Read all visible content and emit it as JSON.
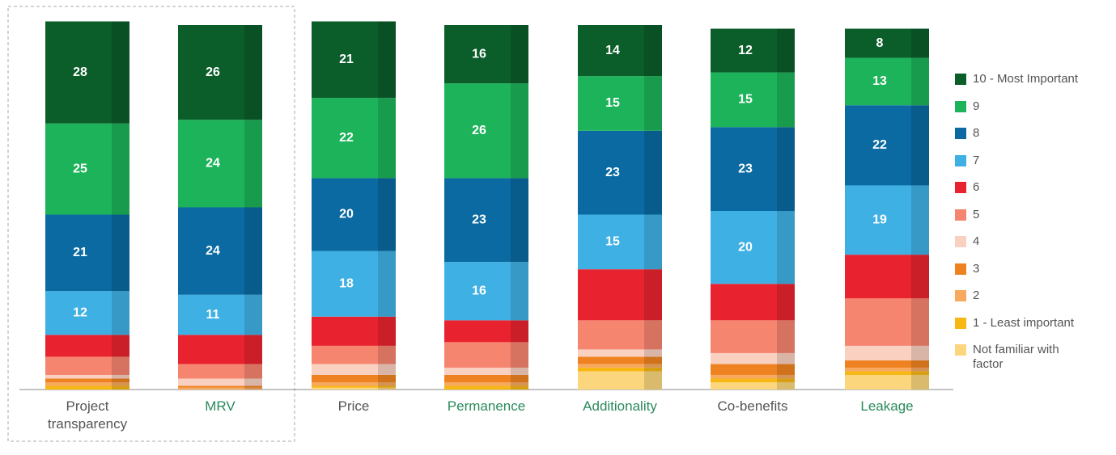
{
  "chart_data": {
    "type": "stacked_bar",
    "categories": [
      "Project transparency",
      "MRV",
      "Price",
      "Permanence",
      "Additionality",
      "Co-benefits",
      "Leakage"
    ],
    "category_colors": [
      "#555555",
      "#2a8a5a",
      "#555555",
      "#2a8a5a",
      "#2a8a5a",
      "#555555",
      "#2a8a5a"
    ],
    "ylim": [
      0,
      100
    ],
    "series": [
      {
        "name": "10 - Most Important",
        "color": "#0b5e2a",
        "show_labels": true,
        "values": [
          28,
          26,
          21,
          16,
          14,
          12,
          8
        ]
      },
      {
        "name": "9",
        "color": "#1db35a",
        "show_labels": true,
        "values": [
          25,
          24,
          22,
          26,
          15,
          15,
          13
        ]
      },
      {
        "name": "8",
        "color": "#0a6aa1",
        "show_labels": true,
        "values": [
          21,
          24,
          20,
          23,
          23,
          23,
          22
        ]
      },
      {
        "name": "7",
        "color": "#3eb0e4",
        "show_labels": true,
        "values": [
          12,
          11,
          18,
          16,
          15,
          20,
          19
        ]
      },
      {
        "name": "6",
        "color": "#e8232f",
        "show_labels": false,
        "values": [
          6,
          8,
          8,
          6,
          14,
          10,
          12
        ]
      },
      {
        "name": "5",
        "color": "#f5856f",
        "show_labels": false,
        "values": [
          5,
          4,
          5,
          7,
          8,
          9,
          13
        ]
      },
      {
        "name": "4",
        "color": "#fad0c0",
        "show_labels": false,
        "values": [
          1,
          2,
          3,
          2,
          2,
          3,
          4
        ]
      },
      {
        "name": "3",
        "color": "#ef8220",
        "show_labels": false,
        "values": [
          1,
          0.5,
          2,
          2,
          2,
          3,
          2
        ]
      },
      {
        "name": "2",
        "color": "#f7a960",
        "show_labels": false,
        "values": [
          1,
          0.5,
          1,
          1,
          1,
          1,
          1
        ]
      },
      {
        "name": "1 - Least important",
        "color": "#f7b715",
        "show_labels": false,
        "values": [
          1,
          0,
          0.5,
          1,
          1,
          1,
          1
        ]
      },
      {
        "name": "Not familiar with factor",
        "color": "#fbd67d",
        "show_labels": false,
        "values": [
          0,
          0,
          0.5,
          0,
          5,
          2,
          4
        ]
      }
    ]
  }
}
